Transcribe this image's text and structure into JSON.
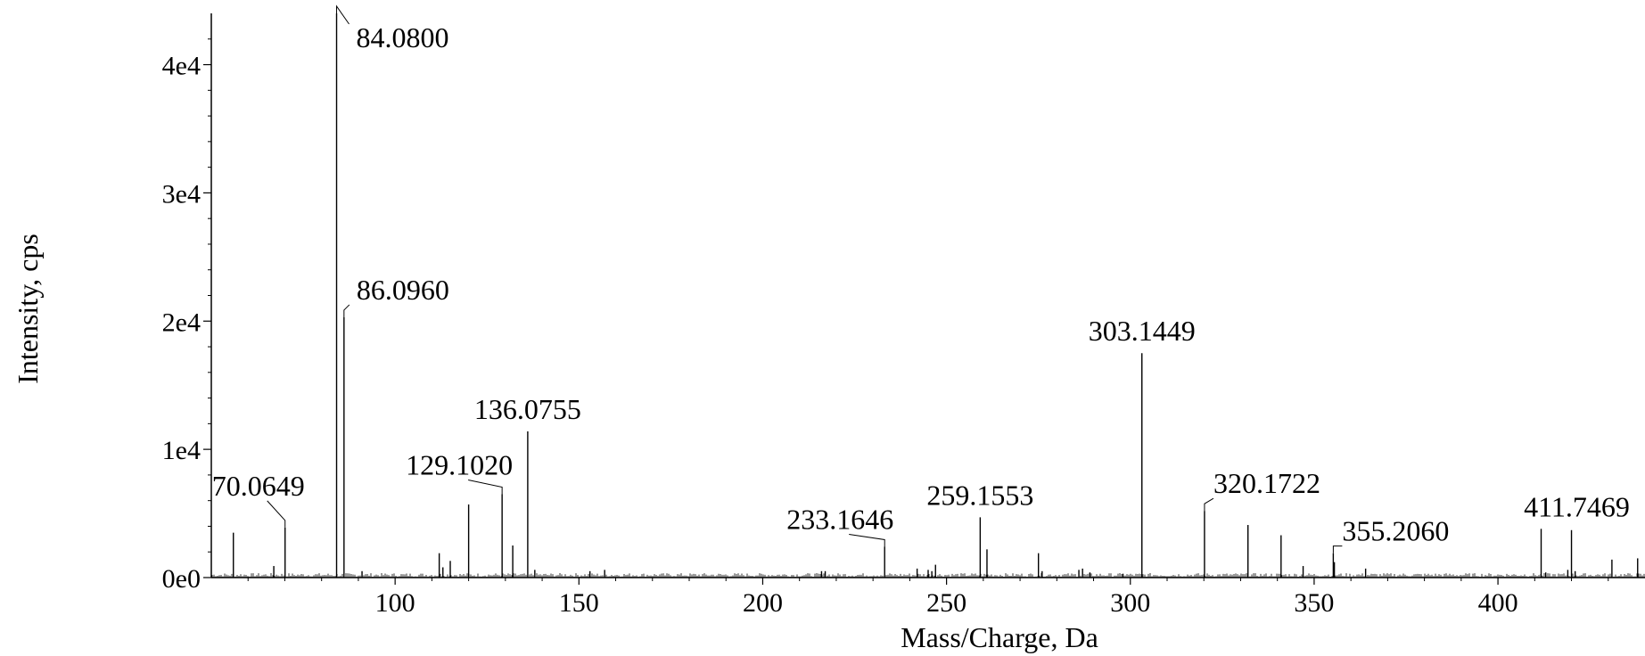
{
  "chart_data": {
    "type": "line",
    "title": "",
    "xlabel": "Mass/Charge, Da",
    "ylabel": "Intensity, cps",
    "xlim": [
      50,
      440
    ],
    "ylim": [
      0,
      44000
    ],
    "x_ticks": [
      100,
      150,
      200,
      250,
      300,
      350,
      400
    ],
    "x_tick_labels": [
      "100",
      "150",
      "200",
      "250",
      "300",
      "350",
      "400"
    ],
    "y_ticks": [
      0,
      10000,
      20000,
      30000,
      40000
    ],
    "y_tick_labels": [
      "0e0",
      "1e4",
      "2e4",
      "3e4",
      "4e4"
    ],
    "grid": false,
    "labeled_peaks": [
      {
        "mz": 70.0649,
        "intensity": 3900,
        "label": "70.0649"
      },
      {
        "mz": 84.08,
        "intensity": 44000,
        "label": "84.0800"
      },
      {
        "mz": 86.096,
        "intensity": 20300,
        "label": "86.0960"
      },
      {
        "mz": 129.102,
        "intensity": 6500,
        "label": "129.1020"
      },
      {
        "mz": 136.0755,
        "intensity": 11400,
        "label": "136.0755"
      },
      {
        "mz": 233.1646,
        "intensity": 2400,
        "label": "233.1646"
      },
      {
        "mz": 259.1553,
        "intensity": 4700,
        "label": "259.1553"
      },
      {
        "mz": 303.1449,
        "intensity": 17500,
        "label": "303.1449"
      },
      {
        "mz": 320.1722,
        "intensity": 5200,
        "label": "320.1722"
      },
      {
        "mz": 355.206,
        "intensity": 1900,
        "label": "355.2060"
      },
      {
        "mz": 411.7469,
        "intensity": 3800,
        "label": "411.7469"
      }
    ],
    "other_peaks": [
      {
        "mz": 56.0,
        "intensity": 3500
      },
      {
        "mz": 67.0,
        "intensity": 900
      },
      {
        "mz": 91.0,
        "intensity": 500
      },
      {
        "mz": 112.0,
        "intensity": 1900
      },
      {
        "mz": 113.0,
        "intensity": 800
      },
      {
        "mz": 115.0,
        "intensity": 1300
      },
      {
        "mz": 120.0,
        "intensity": 5700
      },
      {
        "mz": 132.0,
        "intensity": 2500
      },
      {
        "mz": 138.0,
        "intensity": 600
      },
      {
        "mz": 153.0,
        "intensity": 500
      },
      {
        "mz": 157.0,
        "intensity": 600
      },
      {
        "mz": 216.0,
        "intensity": 500
      },
      {
        "mz": 217.0,
        "intensity": 500
      },
      {
        "mz": 242.0,
        "intensity": 700
      },
      {
        "mz": 245.0,
        "intensity": 600
      },
      {
        "mz": 246.0,
        "intensity": 500
      },
      {
        "mz": 247.0,
        "intensity": 1000
      },
      {
        "mz": 261.0,
        "intensity": 2200
      },
      {
        "mz": 275.0,
        "intensity": 1900
      },
      {
        "mz": 276.0,
        "intensity": 500
      },
      {
        "mz": 286.0,
        "intensity": 600
      },
      {
        "mz": 287.0,
        "intensity": 700
      },
      {
        "mz": 289.0,
        "intensity": 400
      },
      {
        "mz": 298.0,
        "intensity": 300
      },
      {
        "mz": 332.0,
        "intensity": 4100
      },
      {
        "mz": 341.0,
        "intensity": 3300
      },
      {
        "mz": 347.0,
        "intensity": 900
      },
      {
        "mz": 355.5,
        "intensity": 1200
      },
      {
        "mz": 364.0,
        "intensity": 700
      },
      {
        "mz": 413.0,
        "intensity": 400
      },
      {
        "mz": 419.0,
        "intensity": 600
      },
      {
        "mz": 420.0,
        "intensity": 3700
      },
      {
        "mz": 421.0,
        "intensity": 500
      },
      {
        "mz": 431.0,
        "intensity": 1400
      },
      {
        "mz": 438.0,
        "intensity": 1500
      }
    ]
  }
}
